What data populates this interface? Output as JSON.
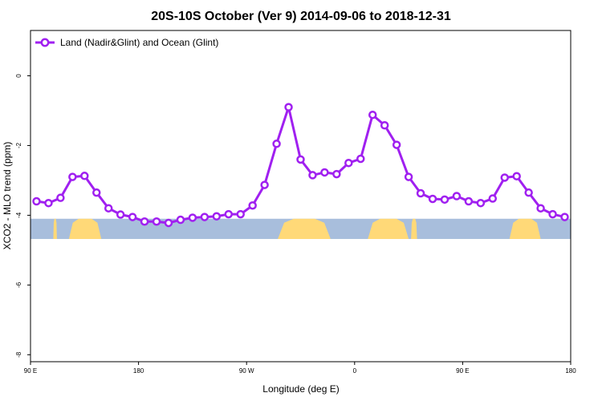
{
  "chart_data": {
    "type": "line",
    "title": "20S-10S October (Ver 9)   2014-09-06 to 2018-12-31",
    "xlabel": "Longitude (deg E)",
    "ylabel": "XCO2 - MLO trend (ppm)",
    "xlim": [
      90,
      540
    ],
    "ylim": [
      -8.2,
      1.3
    ],
    "xticks": [
      {
        "value": 90,
        "label": "90 E"
      },
      {
        "value": 180,
        "label": "180"
      },
      {
        "value": 270,
        "label": "90 W"
      },
      {
        "value": 360,
        "label": "0"
      },
      {
        "value": 450,
        "label": "90 E"
      },
      {
        "value": 540,
        "label": "180"
      }
    ],
    "yticks": [
      {
        "value": 0,
        "label": "0"
      },
      {
        "value": -2,
        "label": "-2"
      },
      {
        "value": -4,
        "label": "-4"
      },
      {
        "value": -6,
        "label": "-6"
      },
      {
        "value": -8,
        "label": "-8"
      }
    ],
    "grid": false,
    "legend_position": "top-left",
    "series": [
      {
        "name": "Land (Nadir&Glint) and Ocean (Glint)",
        "color": "#a020f0",
        "x": [
          95,
          105,
          115,
          125,
          135,
          145,
          155,
          165,
          175,
          185,
          195,
          205,
          215,
          225,
          235,
          245,
          255,
          265,
          275,
          285,
          295,
          305,
          315,
          325,
          335,
          345,
          355,
          365,
          375,
          385,
          395,
          405,
          415,
          425,
          435,
          445,
          455,
          465,
          475,
          485,
          495,
          505,
          515,
          525,
          535
        ],
        "y": [
          -3.6,
          -3.65,
          -3.5,
          -2.9,
          -2.87,
          -3.35,
          -3.8,
          -3.98,
          -4.05,
          -4.18,
          -4.18,
          -4.22,
          -4.13,
          -4.07,
          -4.05,
          -4.03,
          -3.97,
          -3.97,
          -3.72,
          -3.13,
          -1.95,
          -0.9,
          -2.4,
          -2.85,
          -2.77,
          -2.82,
          -2.5,
          -2.38,
          -1.12,
          -1.42,
          -1.98,
          -2.9,
          -3.37,
          -3.53,
          -3.55,
          -3.45,
          -3.6,
          -3.65,
          -3.52,
          -2.92,
          -2.88,
          -3.35,
          -3.8,
          -3.97,
          -4.05
        ]
      }
    ],
    "surface_band": {
      "y_range": [
        -4.1,
        -4.68
      ],
      "ocean_color": "#a8bedc",
      "land_color": "#ffd978",
      "land_segments": [
        [
          122,
          149
        ],
        [
          109,
          112
        ],
        [
          296,
          340
        ],
        [
          371,
          405
        ],
        [
          407,
          412
        ],
        [
          489,
          515
        ]
      ]
    }
  }
}
